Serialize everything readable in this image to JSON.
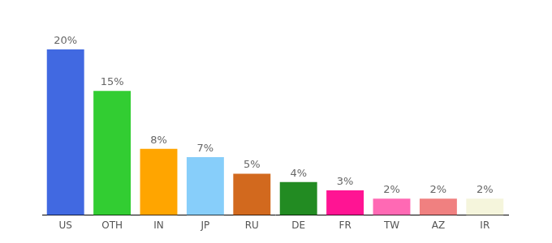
{
  "chart_data": {
    "type": "bar",
    "categories": [
      "US",
      "OTH",
      "IN",
      "JP",
      "RU",
      "DE",
      "FR",
      "TW",
      "AZ",
      "IR"
    ],
    "values": [
      20,
      15,
      8,
      7,
      5,
      4,
      3,
      2,
      2,
      2
    ],
    "value_labels": [
      "20%",
      "15%",
      "8%",
      "7%",
      "5%",
      "4%",
      "3%",
      "2%",
      "2%",
      "2%"
    ],
    "colors": [
      "#4169e1",
      "#32cd32",
      "#ffa500",
      "#87cefa",
      "#d2691e",
      "#228b22",
      "#ff1493",
      "#ff69b4",
      "#f08080",
      "#f5f5dc"
    ],
    "ylim": [
      0,
      20
    ],
    "grid": false,
    "data_labels": true,
    "tick_labels": "x"
  }
}
